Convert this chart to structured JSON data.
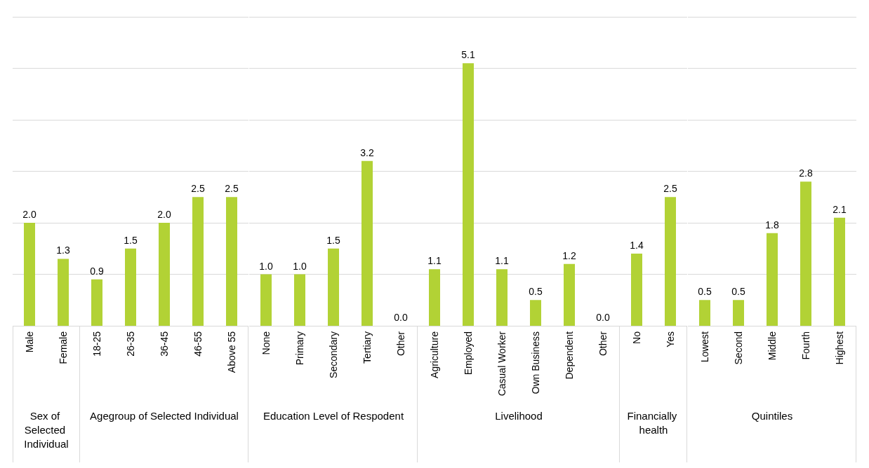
{
  "chart_data": [
    {
      "type": "bar",
      "xlabel": "Sex of Selected Individual",
      "categories": [
        "Male",
        "Female"
      ],
      "values": [
        2.0,
        1.3
      ],
      "value_labels": [
        "2.0",
        "1.3"
      ],
      "color": "#b2d235",
      "ylim": [
        0,
        6
      ],
      "grid": "y",
      "tick_labels": "x"
    },
    {
      "type": "bar",
      "xlabel": "Agegroup of Selected Individual",
      "categories": [
        "18-25",
        "26-35",
        "36-45",
        "46-55",
        "Above 55"
      ],
      "values": [
        0.9,
        1.5,
        2.0,
        2.5,
        2.5
      ],
      "value_labels": [
        "0.9",
        "1.5",
        "2.0",
        "2.5",
        "2.5"
      ],
      "color": "#b2d235",
      "ylim": [
        0,
        6
      ],
      "grid": "y",
      "tick_labels": "x"
    },
    {
      "type": "bar",
      "xlabel": "Education Level of Respodent",
      "categories": [
        "None",
        "Primary",
        "Secondary",
        "Tertiary",
        "Other"
      ],
      "values": [
        1.0,
        1.0,
        1.5,
        3.2,
        0.0
      ],
      "value_labels": [
        "1.0",
        "1.0",
        "1.5",
        "3.2",
        "0.0"
      ],
      "color": "#b2d235",
      "ylim": [
        0,
        6
      ],
      "grid": "y",
      "tick_labels": "x"
    },
    {
      "type": "bar",
      "xlabel": "Livelihood",
      "categories": [
        "Agriculture",
        "Employed",
        "Casual Worker",
        "Own Business",
        "Dependent",
        "Other"
      ],
      "values": [
        1.1,
        5.1,
        1.1,
        0.5,
        1.2,
        0.0
      ],
      "value_labels": [
        "1.1",
        "5.1",
        "1.1",
        "0.5",
        "1.2",
        "0.0"
      ],
      "color": "#b2d235",
      "ylim": [
        0,
        6
      ],
      "grid": "y",
      "tick_labels": "x"
    },
    {
      "type": "bar",
      "xlabel": "Financially health",
      "categories": [
        "No",
        "Yes"
      ],
      "values": [
        1.4,
        2.5
      ],
      "value_labels": [
        "1.4",
        "2.5"
      ],
      "color": "#b2d235",
      "ylim": [
        0,
        6
      ],
      "grid": "y",
      "tick_labels": "x"
    },
    {
      "type": "bar",
      "xlabel": "Quintiles",
      "categories": [
        "Lowest",
        "Second",
        "Middle",
        "Fourth",
        "Highest"
      ],
      "values": [
        0.5,
        0.5,
        1.8,
        2.8,
        2.1
      ],
      "value_labels": [
        "0.5",
        "0.5",
        "1.8",
        "2.8",
        "2.1"
      ],
      "color": "#b2d235",
      "ylim": [
        0,
        6
      ],
      "grid": "y",
      "tick_labels": "x"
    }
  ]
}
